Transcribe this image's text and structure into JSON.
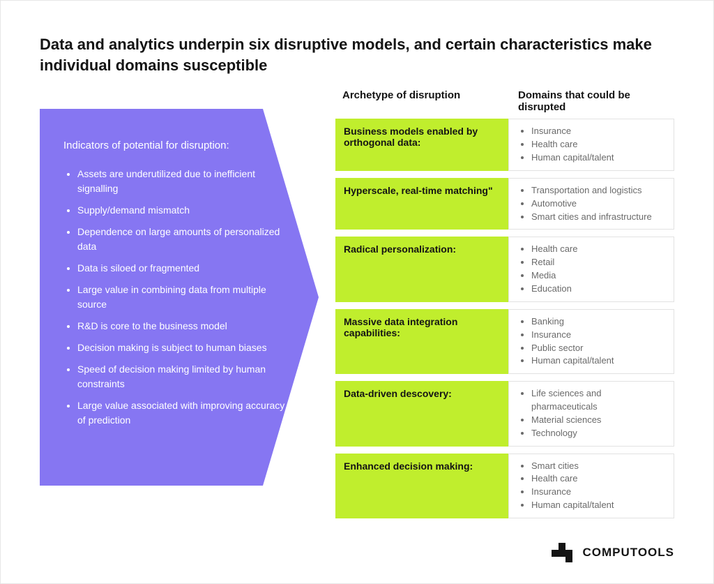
{
  "type": "infographic",
  "background_color": "#ffffff",
  "title": "Data and analytics underpin six disruptive models, and certain characteristics make individual domains susceptible",
  "title_fontsize": 22,
  "left_panel": {
    "bg_color": "#8676f2",
    "text_color": "#ffffff",
    "heading": "Indicators of potential for disruption:",
    "items": [
      "Assets are underutilized due to inefficient signalling",
      "Supply/demand mismatch",
      "Dependence on large amounts of personalized data",
      "Data is siloed or fragmented",
      "Large value in combining data from multiple source",
      "R&D is core to the business model",
      "Decision making is subject to human biases",
      "Speed of decision making limited by human constraints",
      "Large value associated with improving accuracy of prediction"
    ]
  },
  "columns": {
    "archetype": "Archetype of disruption",
    "domains": "Domains that could be disrupted"
  },
  "archetype_bg": "#c0ee2d",
  "domain_border": "#e2e2e2",
  "domain_text_color": "#6a6a6a",
  "rows": [
    {
      "archetype": "Business models enabled by orthogonal data:",
      "domains": [
        "Insurance",
        "Health care",
        "Human capital/talent"
      ]
    },
    {
      "archetype": "Hyperscale, real-time matching\"",
      "domains": [
        "Transportation and logistics",
        "Automotive",
        "Smart cities and infrastructure"
      ]
    },
    {
      "archetype": "Radical personalization:",
      "domains": [
        "Health care",
        "Retail",
        "Media",
        "Education"
      ]
    },
    {
      "archetype": "Massive data integration capabilities:",
      "domains": [
        "Banking",
        "Insurance",
        "Public sector",
        "Human capital/talent"
      ]
    },
    {
      "archetype": "Data-driven descovery:",
      "domains": [
        "Life sciences and pharmaceuticals",
        "Material sciences",
        "Technology"
      ]
    },
    {
      "archetype": "Enhanced decision making:",
      "domains": [
        "Smart cities",
        "Health care",
        "Insurance",
        "Human capital/talent"
      ]
    }
  ],
  "footer": {
    "brand": "COMPUTOOLS",
    "logo_color": "#141414"
  }
}
